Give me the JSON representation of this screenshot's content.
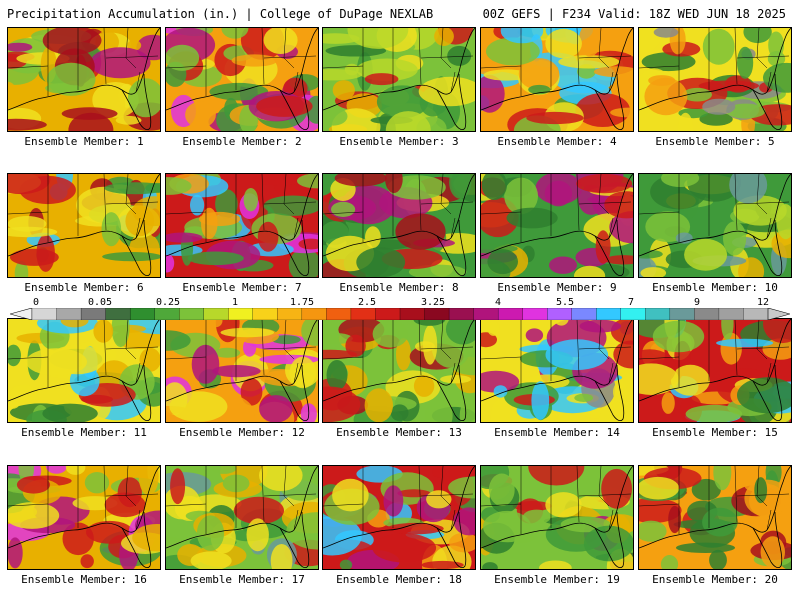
{
  "header": {
    "title_left": "Precipitation Accumulation (in.) | College of DuPage NEXLAB",
    "title_right": "00Z GEFS | F234 Valid: 18Z WED JUN 18 2025"
  },
  "panels": [
    {
      "label": "Ensemble Member: 1"
    },
    {
      "label": "Ensemble Member: 2"
    },
    {
      "label": "Ensemble Member: 3"
    },
    {
      "label": "Ensemble Member: 4"
    },
    {
      "label": "Ensemble Member: 5"
    },
    {
      "label": "Ensemble Member: 6"
    },
    {
      "label": "Ensemble Member: 7"
    },
    {
      "label": "Ensemble Member: 8"
    },
    {
      "label": "Ensemble Member: 9"
    },
    {
      "label": "Ensemble Member: 10"
    },
    {
      "label": "Ensemble Member: 11"
    },
    {
      "label": "Ensemble Member: 12"
    },
    {
      "label": "Ensemble Member: 13"
    },
    {
      "label": "Ensemble Member: 14"
    },
    {
      "label": "Ensemble Member: 15"
    },
    {
      "label": "Ensemble Member: 16"
    },
    {
      "label": "Ensemble Member: 17"
    },
    {
      "label": "Ensemble Member: 18"
    },
    {
      "label": "Ensemble Member: 19"
    },
    {
      "label": "Ensemble Member: 20"
    }
  ],
  "colorbar": {
    "labels": [
      "0",
      "0.05",
      "0.25",
      "1",
      "1.75",
      "2.5",
      "3.25",
      "4",
      "5.5",
      "7",
      "9",
      "12"
    ],
    "colors": [
      "#d6d6d6",
      "#a8a8a8",
      "#7a7a7a",
      "#3f6f3f",
      "#2f8f2f",
      "#4fa83a",
      "#7cc23a",
      "#b8d82a",
      "#f0f020",
      "#f8d21a",
      "#f7b414",
      "#f59610",
      "#f06010",
      "#e23016",
      "#cc1a1a",
      "#a80f1c",
      "#8a0820",
      "#9a1050",
      "#b0147c",
      "#cc1ab0",
      "#e033e0",
      "#b060ff",
      "#7a88ff",
      "#33c8ff",
      "#33f0f0",
      "#40c0c0",
      "#6a9a9a",
      "#8a8a8a",
      "#a0a0a0",
      "#b8b8b8"
    ]
  }
}
